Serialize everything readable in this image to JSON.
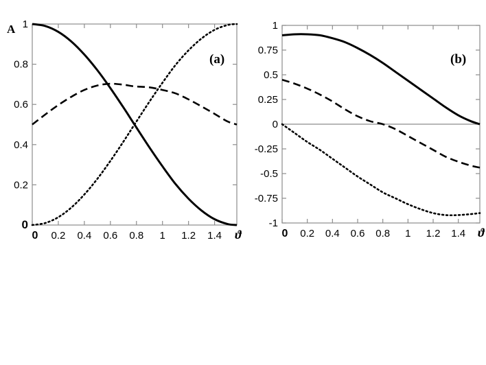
{
  "figure_label": "A",
  "chart_data": [
    {
      "type": "line",
      "panel_label": "(a)",
      "title": "",
      "xlabel": "ϑ",
      "ylabel": "",
      "xlim": [
        0,
        1.5708
      ],
      "ylim": [
        0,
        1
      ],
      "x_ticks": [
        "0",
        "0.2",
        "0.4",
        "0.6",
        "0.8",
        "1",
        "1.2",
        "1.4"
      ],
      "x_tick_values": [
        0,
        0.2,
        0.4,
        0.6,
        0.8,
        1.0,
        1.2,
        1.4
      ],
      "y_ticks": [
        "0",
        "0.2",
        "0.4",
        "0.6",
        "0.8",
        "1"
      ],
      "y_tick_values": [
        0,
        0.2,
        0.4,
        0.6,
        0.8,
        1.0
      ],
      "grid": false,
      "legend": "none",
      "x": [
        0,
        0.1,
        0.2,
        0.3,
        0.4,
        0.5,
        0.6,
        0.7,
        0.785,
        0.9,
        1.0,
        1.1,
        1.2,
        1.3,
        1.4,
        1.5,
        1.571
      ],
      "series": [
        {
          "style": "solid",
          "values": [
            1.0,
            0.99,
            0.961,
            0.913,
            0.848,
            0.77,
            0.681,
            0.585,
            0.5,
            0.386,
            0.292,
            0.204,
            0.131,
            0.072,
            0.029,
            0.005,
            0.0
          ]
        },
        {
          "style": "dashed",
          "values": [
            0.5,
            0.55,
            0.597,
            0.638,
            0.672,
            0.694,
            0.703,
            0.698,
            0.69,
            0.685,
            0.672,
            0.655,
            0.625,
            0.59,
            0.553,
            0.515,
            0.5
          ]
        },
        {
          "style": "dotted",
          "values": [
            0.0,
            0.01,
            0.039,
            0.087,
            0.152,
            0.23,
            0.319,
            0.415,
            0.5,
            0.614,
            0.708,
            0.796,
            0.869,
            0.928,
            0.971,
            0.995,
            1.0
          ]
        }
      ]
    },
    {
      "type": "line",
      "panel_label": "(b)",
      "title": "",
      "xlabel": "ϑ",
      "ylabel": "",
      "xlim": [
        0,
        1.5708
      ],
      "ylim": [
        -1,
        1
      ],
      "x_ticks": [
        "0",
        "0.2",
        "0.4",
        "0.6",
        "0.8",
        "1",
        "1.2",
        "1.4"
      ],
      "x_tick_values": [
        0,
        0.2,
        0.4,
        0.6,
        0.8,
        1.0,
        1.2,
        1.4
      ],
      "y_ticks": [
        "1",
        "0.75",
        "0.5",
        "0.25",
        "0",
        "-0.25",
        "-0.5",
        "-0.75",
        "-1"
      ],
      "y_tick_values": [
        1,
        0.75,
        0.5,
        0.25,
        0,
        -0.25,
        -0.5,
        -0.75,
        -1
      ],
      "grid": false,
      "zero_line": true,
      "legend": "none",
      "x": [
        0,
        0.1,
        0.2,
        0.3,
        0.4,
        0.5,
        0.6,
        0.7,
        0.8,
        0.9,
        1.0,
        1.1,
        1.2,
        1.3,
        1.4,
        1.5,
        1.571
      ],
      "series": [
        {
          "style": "solid",
          "values": [
            0.9,
            0.91,
            0.91,
            0.9,
            0.87,
            0.83,
            0.77,
            0.7,
            0.62,
            0.53,
            0.44,
            0.35,
            0.26,
            0.17,
            0.09,
            0.03,
            0.0
          ]
        },
        {
          "style": "dashed",
          "values": [
            0.45,
            0.41,
            0.36,
            0.3,
            0.23,
            0.15,
            0.08,
            0.03,
            0.0,
            -0.05,
            -0.12,
            -0.19,
            -0.26,
            -0.33,
            -0.38,
            -0.42,
            -0.44
          ]
        },
        {
          "style": "dotted",
          "values": [
            0.0,
            -0.09,
            -0.18,
            -0.26,
            -0.35,
            -0.44,
            -0.53,
            -0.61,
            -0.69,
            -0.75,
            -0.81,
            -0.86,
            -0.9,
            -0.92,
            -0.92,
            -0.91,
            -0.9
          ]
        }
      ]
    }
  ]
}
